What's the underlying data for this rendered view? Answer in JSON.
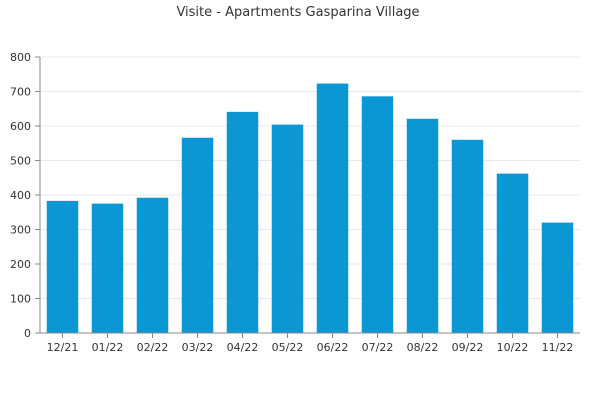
{
  "chart_data": {
    "type": "bar",
    "title": "Visite - Apartments Gasparina Village",
    "xlabel": "",
    "ylabel": "",
    "categories": [
      "12/21",
      "01/22",
      "02/22",
      "03/22",
      "04/22",
      "05/22",
      "06/22",
      "07/22",
      "08/22",
      "09/22",
      "10/22",
      "11/22"
    ],
    "values": [
      383,
      375,
      392,
      566,
      641,
      604,
      723,
      686,
      621,
      560,
      462,
      320
    ],
    "ylim": [
      0,
      800
    ],
    "yticks": [
      0,
      100,
      200,
      300,
      400,
      500,
      600,
      700,
      800
    ],
    "grid": true,
    "legend": "none",
    "colors": {
      "bar": "#0a97d3",
      "axis": "#888888",
      "grid": "#e8e8e8",
      "text": "#333333"
    }
  }
}
